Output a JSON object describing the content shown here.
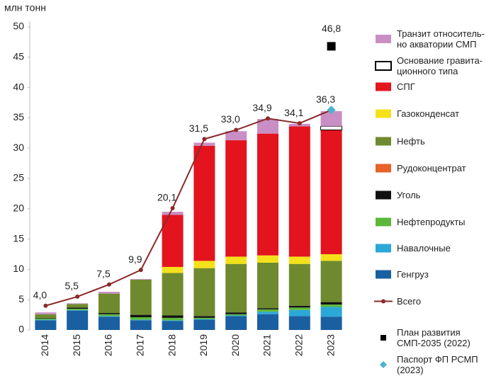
{
  "chart_data": {
    "type": "bar",
    "stacked": true,
    "y_label": "млн тонн",
    "categories": [
      "2014",
      "2015",
      "2016",
      "2017",
      "2018",
      "2019",
      "2020",
      "2021",
      "2022",
      "2023"
    ],
    "ylim": [
      0,
      50
    ],
    "yticks": [
      0,
      5,
      10,
      15,
      20,
      25,
      30,
      35,
      40,
      45,
      50
    ],
    "grid": false,
    "series": [
      {
        "name": "Транзит относитель-\nно акватории СМП",
        "type": "bar",
        "color": "#c98fc4",
        "values": [
          0.3,
          0.1,
          0.3,
          0.1,
          0.5,
          0.5,
          1.5,
          2.4,
          0.4,
          2.5
        ]
      },
      {
        "name": "Основание гравита-\nционного типа",
        "type": "bar",
        "color": "#ffffff",
        "values": [
          0,
          0,
          0,
          0,
          0,
          0,
          0,
          0,
          0,
          0.6
        ]
      },
      {
        "name": "СПГ",
        "type": "bar",
        "color": "#e3141e",
        "values": [
          0,
          0,
          0,
          0,
          8.6,
          19.0,
          19.2,
          20.1,
          21.5,
          20.5
        ]
      },
      {
        "name": "Газоконденсат",
        "type": "bar",
        "color": "#f5e11b",
        "values": [
          0,
          0,
          0,
          0,
          1.0,
          1.2,
          1.2,
          1.2,
          1.2,
          1.1
        ]
      },
      {
        "name": "Нефть",
        "type": "bar",
        "color": "#6f8a2e",
        "values": [
          0.6,
          0.6,
          3.2,
          5.8,
          7.0,
          7.9,
          8.0,
          7.5,
          6.9,
          6.8
        ]
      },
      {
        "name": "Рудоконцентрат",
        "type": "bar",
        "color": "#e8622a",
        "values": [
          0,
          0,
          0,
          0,
          0,
          0,
          0,
          0,
          0,
          0
        ]
      },
      {
        "name": "Уголь",
        "type": "bar",
        "color": "#111111",
        "values": [
          0.1,
          0.2,
          0.2,
          0.4,
          0.4,
          0.3,
          0.3,
          0.2,
          0.3,
          0.4
        ]
      },
      {
        "name": "Нефтепродукты",
        "type": "bar",
        "color": "#5cb83c",
        "values": [
          0.2,
          0.2,
          0.3,
          0.4,
          0.4,
          0.2,
          0.2,
          0.4,
          0.4,
          0.4
        ]
      },
      {
        "name": "Навалочные",
        "type": "bar",
        "color": "#2ba8d8",
        "values": [
          0.1,
          0.1,
          0.1,
          0.1,
          0.1,
          0.1,
          0.1,
          0.4,
          1.0,
          1.6
        ]
      },
      {
        "name": "Генгруз",
        "type": "bar",
        "color": "#1a5fa0",
        "values": [
          1.6,
          3.2,
          2.2,
          1.6,
          1.5,
          1.7,
          2.3,
          2.6,
          2.3,
          2.2
        ]
      },
      {
        "name": "Всего",
        "type": "line",
        "color": "#8b2a2a",
        "values": [
          4.0,
          5.5,
          7.5,
          9.9,
          20.1,
          31.5,
          33.0,
          34.9,
          34.1,
          36.3
        ],
        "value_labels": [
          "4,0",
          "5,5",
          "7,5",
          "9,9",
          "20,1",
          "31,5",
          "33,0",
          "34,9",
          "34,1",
          "36,3"
        ]
      },
      {
        "name": "План развития\nСМП-2035 (2022)",
        "type": "square",
        "color": "#000000",
        "values": [
          null,
          null,
          null,
          null,
          null,
          null,
          null,
          null,
          null,
          46.8
        ],
        "value_labels": [
          null,
          null,
          null,
          null,
          null,
          null,
          null,
          null,
          null,
          "46,8"
        ]
      },
      {
        "name": "Паспорт ФП РСМП\n(2023)",
        "type": "diamond",
        "color": "#4ab3cf",
        "values": [
          null,
          null,
          null,
          null,
          null,
          null,
          null,
          null,
          null,
          36.3
        ]
      }
    ]
  }
}
